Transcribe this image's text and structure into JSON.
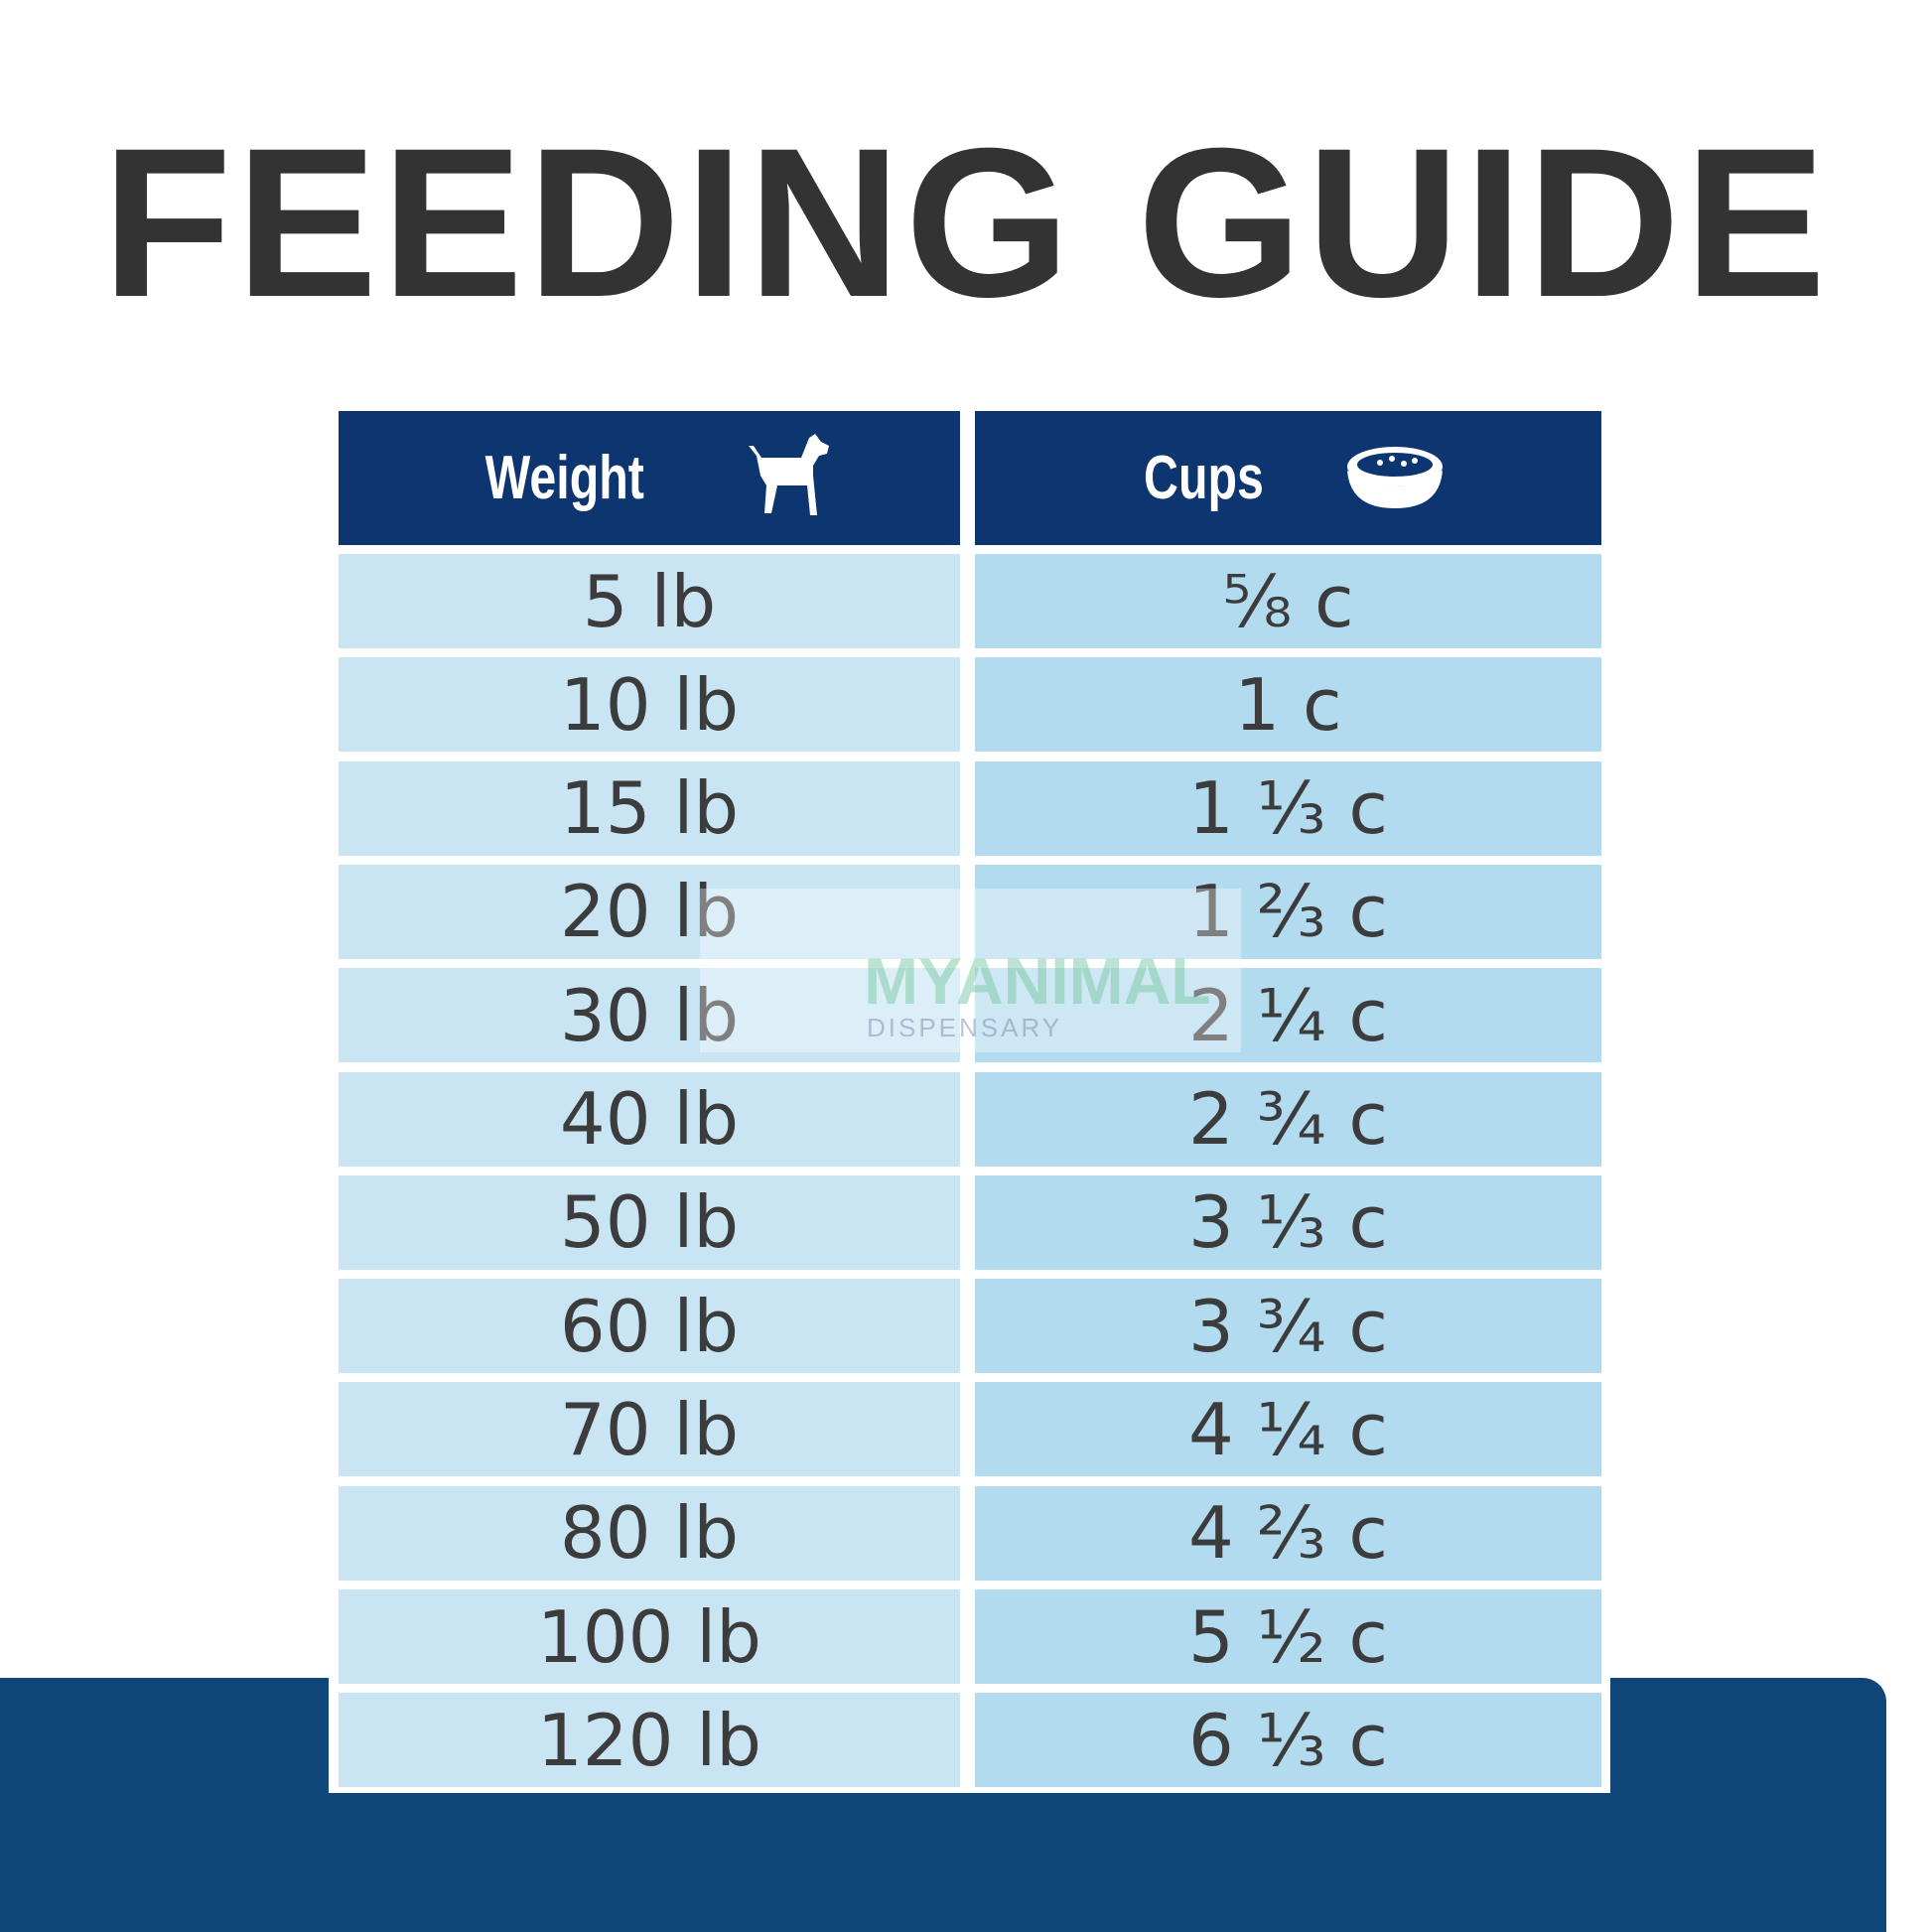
{
  "header": {
    "title": "FEEDING GUIDE"
  },
  "table": {
    "columns": [
      "Weight",
      "Cups"
    ],
    "rows": [
      [
        "5 lb",
        "⅝ c"
      ],
      [
        "10 lb",
        "1 c"
      ],
      [
        "15 lb",
        "1 ⅓ c"
      ],
      [
        "20 lb",
        "1 ⅔ c"
      ],
      [
        "30 lb",
        "2 ¼ c"
      ],
      [
        "40 lb",
        "2 ¾ c"
      ],
      [
        "50 lb",
        "3 ⅓ c"
      ],
      [
        "60 lb",
        "3 ¾ c"
      ],
      [
        "70 lb",
        "4 ¼ c"
      ],
      [
        "80 lb",
        "4 ⅔ c"
      ],
      [
        "100 lb",
        "5 ½ c"
      ],
      [
        "120 lb",
        "6 ⅓ c"
      ]
    ]
  },
  "watermark": {
    "name": "MYANIMAL",
    "sub": "DISPENSARY"
  }
}
